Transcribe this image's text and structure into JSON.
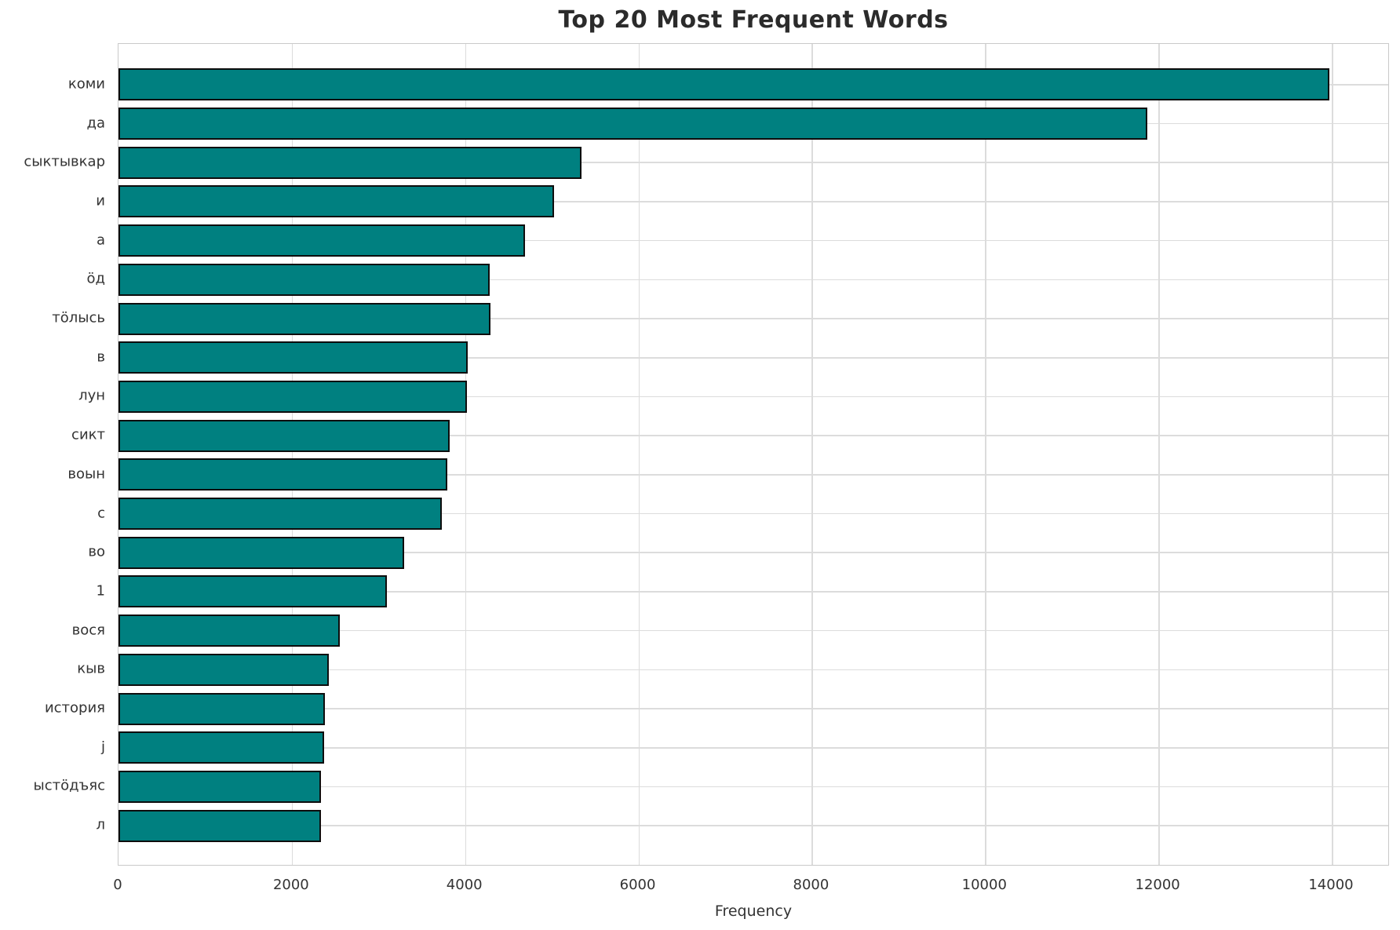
{
  "chart_data": {
    "type": "bar",
    "orientation": "horizontal",
    "title": "Top 20 Most Frequent Words",
    "xlabel": "Frequency",
    "ylabel": "",
    "categories": [
      "коми",
      "да",
      "сыктывкар",
      "и",
      "а",
      "ӧд",
      "тӧлысь",
      "в",
      "лун",
      "сикт",
      "воын",
      "с",
      "во",
      "1",
      "вося",
      "кыв",
      "история",
      "j",
      "ыстӧдъяс",
      "л"
    ],
    "values": [
      13970,
      11870,
      5340,
      5030,
      4690,
      4280,
      4290,
      4030,
      4020,
      3820,
      3790,
      3730,
      3300,
      3100,
      2550,
      2430,
      2380,
      2370,
      2340,
      2340
    ],
    "xlim": [
      0,
      14670
    ],
    "xticks": [
      0,
      2000,
      4000,
      6000,
      8000,
      10000,
      12000,
      14000
    ],
    "grid": true,
    "legend": "none",
    "bar_color": "#008080",
    "bar_edge_color": "#0d0d0d",
    "grid_color": "#dcdcdc",
    "title_color": "#2b2b2b",
    "tick_color": "#333333"
  }
}
